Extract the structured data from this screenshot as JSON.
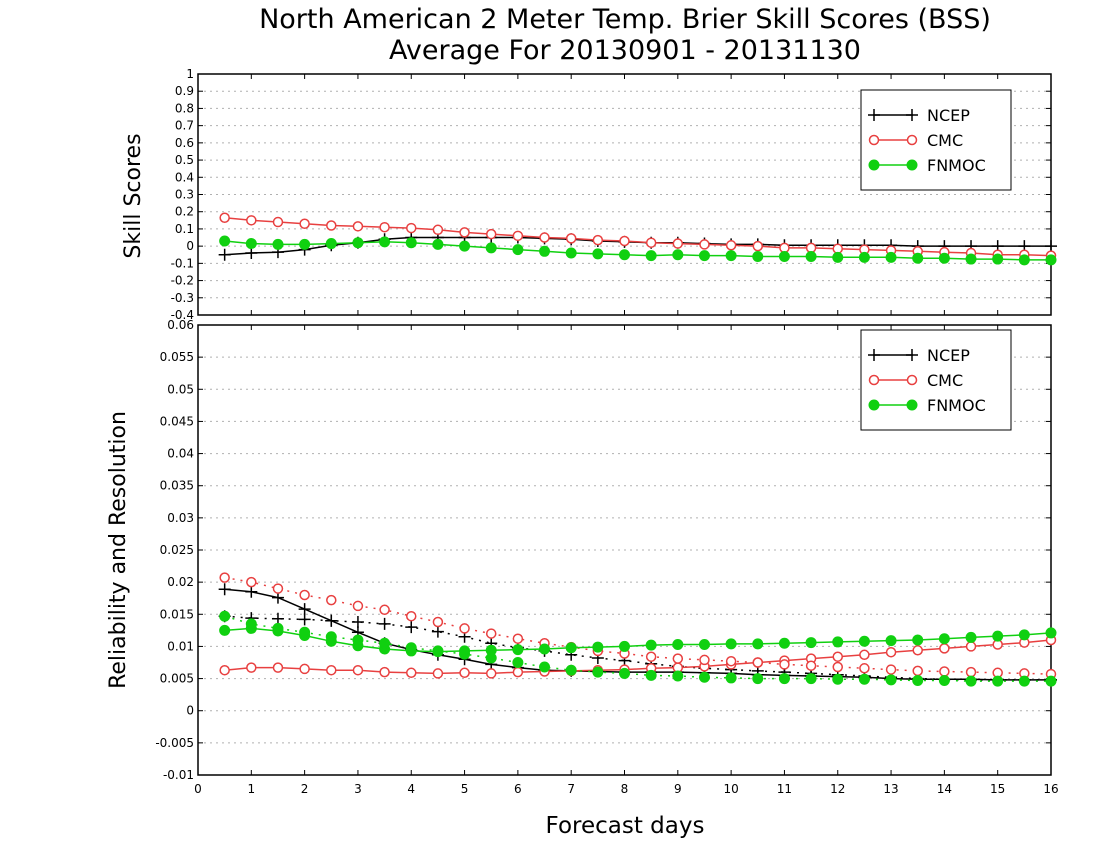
{
  "title_line1": "North American 2 Meter Temp. Brier Skill Scores (BSS)",
  "title_line2": "Average For 20130901 - 20131130",
  "top_panel": {
    "ylabel": "Skill Scores",
    "yticks": [
      "-0.4",
      "-0.3",
      "-0.2",
      "-0.1",
      "0",
      "0.1",
      "0.2",
      "0.3",
      "0.4",
      "0.5",
      "0.6",
      "0.7",
      "0.8",
      "0.9",
      "1"
    ],
    "legend": [
      "NCEP",
      "CMC",
      "FNMOC"
    ]
  },
  "bottom_panel": {
    "ylabel": "Reliability and Resolution",
    "yticks": [
      "-0.01",
      "-0.005",
      "0",
      "0.005",
      "0.01",
      "0.015",
      "0.02",
      "0.025",
      "0.03",
      "0.035",
      "0.04",
      "0.045",
      "0.05",
      "0.055",
      "0.06"
    ],
    "legend": [
      "NCEP",
      "CMC",
      "FNMOC"
    ]
  },
  "xlabel": "Forecast days",
  "xticks": [
    "0",
    "1",
    "2",
    "3",
    "4",
    "5",
    "6",
    "7",
    "8",
    "9",
    "10",
    "11",
    "12",
    "13",
    "14",
    "15",
    "16"
  ],
  "colors": {
    "NCEP": "#000000",
    "CMC": "#e84040",
    "FNMOC": "#10d010",
    "grid": "#b0b0b0"
  },
  "chart_data": [
    {
      "type": "line",
      "title": "North American 2 Meter Temp. Brier Skill Scores (BSS)",
      "ylabel": "Skill Scores",
      "xlabel": "Forecast days",
      "xlim": [
        0,
        16
      ],
      "ylim": [
        -0.4,
        1
      ],
      "grid": true,
      "legend_position": "top-right",
      "x": [
        0.5,
        1,
        1.5,
        2,
        2.5,
        3,
        3.5,
        4,
        4.5,
        5,
        5.5,
        6,
        6.5,
        7,
        7.5,
        8,
        8.5,
        9,
        9.5,
        10,
        10.5,
        11,
        11.5,
        12,
        12.5,
        13,
        13.5,
        14,
        14.5,
        15,
        15.5,
        16
      ],
      "series": [
        {
          "name": "NCEP",
          "marker": "plus",
          "style": "solid",
          "values": [
            -0.05,
            -0.04,
            -0.035,
            -0.02,
            0.005,
            0.02,
            0.04,
            0.05,
            0.05,
            0.05,
            0.05,
            0.05,
            0.045,
            0.04,
            0.03,
            0.025,
            0.02,
            0.02,
            0.015,
            0.01,
            0.01,
            0.005,
            0.005,
            0.005,
            0.005,
            0.005,
            0.0,
            0.0,
            0.0,
            0.0,
            0.0,
            0.0
          ]
        },
        {
          "name": "CMC",
          "marker": "open-circle",
          "style": "solid",
          "values": [
            0.165,
            0.15,
            0.14,
            0.13,
            0.12,
            0.115,
            0.11,
            0.105,
            0.095,
            0.08,
            0.07,
            0.06,
            0.05,
            0.045,
            0.035,
            0.03,
            0.02,
            0.015,
            0.01,
            0.005,
            0.0,
            -0.01,
            -0.01,
            -0.015,
            -0.02,
            -0.025,
            -0.03,
            -0.035,
            -0.04,
            -0.05,
            -0.05,
            -0.055
          ]
        },
        {
          "name": "FNMOC",
          "marker": "filled-circle",
          "style": "solid",
          "values": [
            0.03,
            0.015,
            0.01,
            0.01,
            0.015,
            0.02,
            0.025,
            0.02,
            0.01,
            0.0,
            -0.01,
            -0.02,
            -0.03,
            -0.04,
            -0.045,
            -0.05,
            -0.055,
            -0.05,
            -0.055,
            -0.055,
            -0.06,
            -0.06,
            -0.06,
            -0.065,
            -0.065,
            -0.065,
            -0.07,
            -0.07,
            -0.075,
            -0.075,
            -0.08,
            -0.08
          ]
        }
      ]
    },
    {
      "type": "line",
      "ylabel": "Reliability and Resolution",
      "xlabel": "Forecast days",
      "xlim": [
        0,
        16
      ],
      "ylim": [
        -0.01,
        0.06
      ],
      "grid": true,
      "legend_position": "top-right",
      "x": [
        0.5,
        1,
        1.5,
        2,
        2.5,
        3,
        3.5,
        4,
        4.5,
        5,
        5.5,
        6,
        6.5,
        7,
        7.5,
        8,
        8.5,
        9,
        9.5,
        10,
        10.5,
        11,
        11.5,
        12,
        12.5,
        13,
        13.5,
        14,
        14.5,
        15,
        15.5,
        16
      ],
      "series": [
        {
          "name": "NCEP",
          "marker": "plus",
          "style": "solid",
          "values": [
            0.0189,
            0.0185,
            0.0176,
            0.0158,
            0.014,
            0.0122,
            0.0105,
            0.0095,
            0.0087,
            0.008,
            0.0072,
            0.0067,
            0.0063,
            0.0062,
            0.0061,
            0.006,
            0.006,
            0.006,
            0.0059,
            0.0058,
            0.0056,
            0.0055,
            0.0054,
            0.0053,
            0.0052,
            0.005,
            0.0049,
            0.0049,
            0.0049,
            0.0048,
            0.0048,
            0.0048
          ]
        },
        {
          "name": "NCEP",
          "marker": "plus",
          "style": "dotted",
          "values": [
            0.0147,
            0.0144,
            0.0143,
            0.0142,
            0.014,
            0.0138,
            0.0135,
            0.013,
            0.0123,
            0.0115,
            0.0105,
            0.0098,
            0.0093,
            0.0087,
            0.0082,
            0.0078,
            0.0073,
            0.0069,
            0.0066,
            0.0064,
            0.0062,
            0.006,
            0.0058,
            0.0056,
            0.0054,
            0.0052,
            0.005,
            0.0049,
            0.0048,
            0.0048,
            0.0048,
            0.0048
          ]
        },
        {
          "name": "CMC",
          "marker": "open-circle",
          "style": "solid",
          "values": [
            0.0063,
            0.0067,
            0.0067,
            0.0065,
            0.0063,
            0.0063,
            0.006,
            0.0059,
            0.0058,
            0.0059,
            0.0058,
            0.006,
            0.0061,
            0.0062,
            0.0063,
            0.0064,
            0.0066,
            0.0067,
            0.0069,
            0.0072,
            0.0075,
            0.0078,
            0.0081,
            0.0084,
            0.0087,
            0.0091,
            0.0094,
            0.0097,
            0.01,
            0.0103,
            0.0106,
            0.011
          ]
        },
        {
          "name": "CMC",
          "marker": "open-circle",
          "style": "dotted",
          "values": [
            0.0207,
            0.02,
            0.019,
            0.018,
            0.0172,
            0.0163,
            0.0157,
            0.0147,
            0.0138,
            0.0128,
            0.012,
            0.0112,
            0.0105,
            0.0099,
            0.0093,
            0.0089,
            0.0084,
            0.0081,
            0.0079,
            0.0077,
            0.0075,
            0.0072,
            0.007,
            0.0068,
            0.0066,
            0.0064,
            0.0062,
            0.0061,
            0.006,
            0.0059,
            0.0058,
            0.0057
          ]
        },
        {
          "name": "FNMOC",
          "marker": "filled-circle",
          "style": "solid",
          "values": [
            0.0125,
            0.0128,
            0.0124,
            0.0117,
            0.0108,
            0.0101,
            0.0096,
            0.0093,
            0.0092,
            0.0093,
            0.0094,
            0.0095,
            0.0096,
            0.0098,
            0.0099,
            0.01,
            0.0102,
            0.0103,
            0.0103,
            0.0104,
            0.0104,
            0.0105,
            0.0106,
            0.0107,
            0.0108,
            0.0109,
            0.011,
            0.0112,
            0.0114,
            0.0116,
            0.0118,
            0.0121
          ]
        },
        {
          "name": "FNMOC",
          "marker": "filled-circle",
          "style": "dotted",
          "values": [
            0.0147,
            0.0135,
            0.0128,
            0.0122,
            0.0115,
            0.011,
            0.0105,
            0.0098,
            0.0093,
            0.0088,
            0.0082,
            0.0075,
            0.0068,
            0.0063,
            0.006,
            0.0058,
            0.0055,
            0.0054,
            0.0052,
            0.0051,
            0.005,
            0.005,
            0.005,
            0.0049,
            0.0049,
            0.0048,
            0.0047,
            0.0047,
            0.0046,
            0.0046,
            0.0046,
            0.0046
          ]
        }
      ]
    }
  ]
}
